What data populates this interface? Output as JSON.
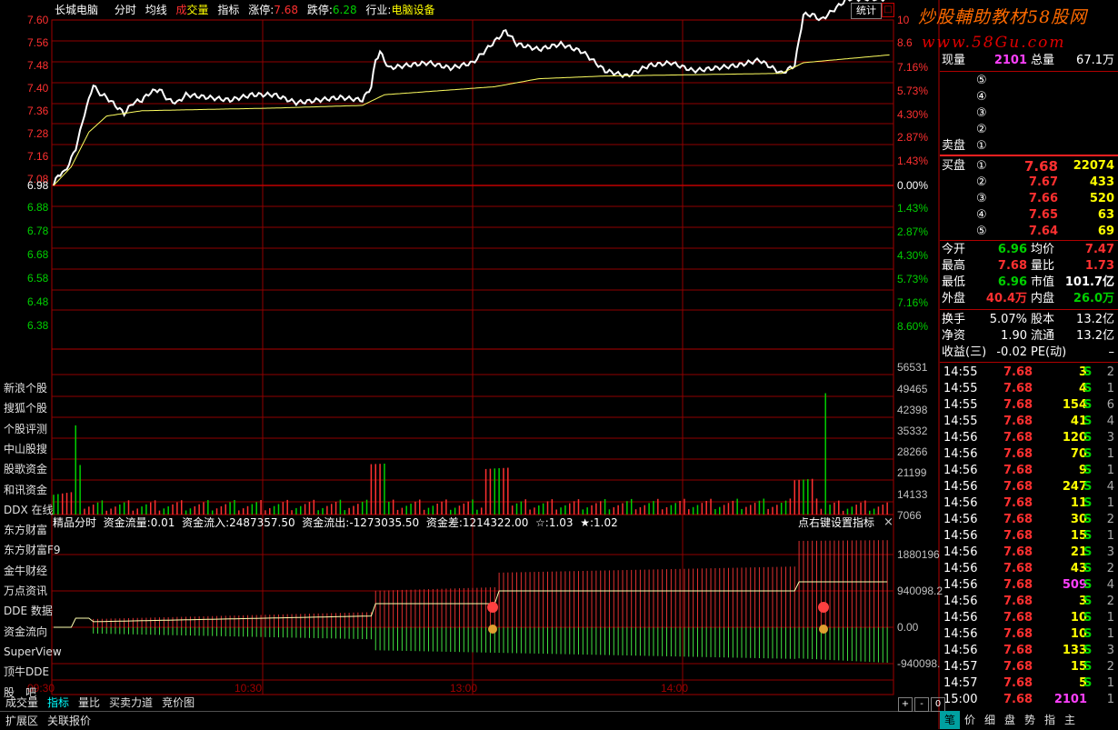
{
  "header": {
    "stock_name": "长城电脑",
    "tab_fenshi": "分时",
    "tab_junxian": "均线",
    "tab_cheng": "成",
    "tab_jiaoliang": "交量",
    "tab_zhibiao": "指标",
    "limit_up_label": "涨停:",
    "limit_up_value": "7.68",
    "limit_down_label": "跌停:",
    "limit_down_value": "6.28",
    "industry_label": "行业:",
    "industry_value": "电脑设备",
    "stat_button": "统计",
    "close_icon": "□"
  },
  "watermark": {
    "line1": "炒股輔助教材58股网",
    "line2": "www.58Gu.com"
  },
  "price_axis_left": [
    "7.60",
    "7.56",
    "7.48",
    "7.40",
    "7.36",
    "7.28",
    "7.16",
    "7.08",
    "6.98",
    "6.88",
    "6.78",
    "6.68",
    "6.58",
    "6.48",
    "6.38"
  ],
  "price_axis_right": [
    "10",
    "8.6",
    "7.16%",
    "5.73%",
    "4.30%",
    "2.87%",
    "1.43%",
    "0.00%",
    "1.43%",
    "2.87%",
    "4.30%",
    "5.73%",
    "7.16%",
    "8.60%"
  ],
  "volume_axis_right": [
    "56531",
    "49465",
    "42398",
    "35332",
    "28266",
    "21199",
    "14133",
    "7066"
  ],
  "indicator_axis_right": [
    "1880196",
    "940098.2",
    "0.00",
    "-940098."
  ],
  "time_axis": [
    "09:30",
    "10:30",
    "13:00",
    "14:00"
  ],
  "left_panel": [
    "新浪个股",
    "搜狐个股",
    "个股评测",
    "中山股搜",
    "股歌资金",
    "和讯资金",
    "DDX 在线",
    "东方财富",
    "东方财富F9",
    "金牛财经",
    "万点资讯",
    "DDE 数据",
    "资金流向",
    "SuperView",
    "顶牛DDE",
    "股　吧"
  ],
  "indicator_header": {
    "name": "精品分时",
    "flow_label": "资金流量:0.01",
    "inflow": "资金流入:2487357.50",
    "outflow": "资金流出:-1273035.50",
    "diff": "资金差:1214322.00",
    "star1": "☆:1.03",
    "star2": "★:1.02",
    "setting": "点右键设置指标",
    "close": "×"
  },
  "quote": {
    "xianliang_label": "现量",
    "xianliang_value": "2101",
    "zongliang_label": "总量",
    "zongliang_value": "67.1万",
    "sell_label": "卖盘",
    "sell_levels": [
      "⑤",
      "④",
      "③",
      "②",
      "①"
    ],
    "buy_label": "买盘",
    "buy": [
      {
        "lv": "①",
        "price": "7.68",
        "vol": "22074"
      },
      {
        "lv": "②",
        "price": "7.67",
        "vol": "433"
      },
      {
        "lv": "③",
        "price": "7.66",
        "vol": "520"
      },
      {
        "lv": "④",
        "price": "7.65",
        "vol": "63"
      },
      {
        "lv": "⑤",
        "price": "7.64",
        "vol": "69"
      }
    ],
    "stats": [
      {
        "l1": "今开",
        "v1": "6.96",
        "c1": "green",
        "l2": "均价",
        "v2": "7.47",
        "c2": "red"
      },
      {
        "l1": "最高",
        "v1": "7.68",
        "c1": "red",
        "l2": "量比",
        "v2": "1.73",
        "c2": "red"
      },
      {
        "l1": "最低",
        "v1": "6.96",
        "c1": "green",
        "l2": "市值",
        "v2": "101.7亿",
        "c2": "white"
      },
      {
        "l1": "外盘",
        "v1": "40.4万",
        "c1": "red",
        "l2": "内盘",
        "v2": "26.0万",
        "c2": "green"
      }
    ],
    "stats2": [
      {
        "l1": "换手",
        "v1": "5.07%",
        "l2": "股本",
        "v2": "13.2亿"
      },
      {
        "l1": "净资",
        "v1": "1.90",
        "l2": "流通",
        "v2": "13.2亿"
      },
      {
        "l1": "收益(三)",
        "v1": "-0.02",
        "l2": "PE(动)",
        "v2": "–"
      }
    ]
  },
  "ticks": [
    {
      "t": "14:55",
      "p": "7.68",
      "v": "3",
      "c": "yellow",
      "s": "S",
      "n": "2"
    },
    {
      "t": "14:55",
      "p": "7.68",
      "v": "4",
      "c": "yellow",
      "s": "S",
      "n": "1"
    },
    {
      "t": "14:55",
      "p": "7.68",
      "v": "154",
      "c": "yellow",
      "s": "S",
      "n": "6"
    },
    {
      "t": "14:55",
      "p": "7.68",
      "v": "41",
      "c": "yellow",
      "s": "S",
      "n": "4"
    },
    {
      "t": "14:56",
      "p": "7.68",
      "v": "120",
      "c": "yellow",
      "s": "S",
      "n": "3"
    },
    {
      "t": "14:56",
      "p": "7.68",
      "v": "70",
      "c": "yellow",
      "s": "S",
      "n": "1"
    },
    {
      "t": "14:56",
      "p": "7.68",
      "v": "9",
      "c": "yellow",
      "s": "S",
      "n": "1"
    },
    {
      "t": "14:56",
      "p": "7.68",
      "v": "247",
      "c": "yellow",
      "s": "S",
      "n": "4"
    },
    {
      "t": "14:56",
      "p": "7.68",
      "v": "11",
      "c": "yellow",
      "s": "S",
      "n": "1"
    },
    {
      "t": "14:56",
      "p": "7.68",
      "v": "30",
      "c": "yellow",
      "s": "S",
      "n": "2"
    },
    {
      "t": "14:56",
      "p": "7.68",
      "v": "15",
      "c": "yellow",
      "s": "S",
      "n": "1"
    },
    {
      "t": "14:56",
      "p": "7.68",
      "v": "21",
      "c": "yellow",
      "s": "S",
      "n": "3"
    },
    {
      "t": "14:56",
      "p": "7.68",
      "v": "43",
      "c": "yellow",
      "s": "S",
      "n": "2"
    },
    {
      "t": "14:56",
      "p": "7.68",
      "v": "509",
      "c": "purple",
      "s": "S",
      "n": "4"
    },
    {
      "t": "14:56",
      "p": "7.68",
      "v": "3",
      "c": "yellow",
      "s": "S",
      "n": "2"
    },
    {
      "t": "14:56",
      "p": "7.68",
      "v": "10",
      "c": "yellow",
      "s": "S",
      "n": "1"
    },
    {
      "t": "14:56",
      "p": "7.68",
      "v": "10",
      "c": "yellow",
      "s": "S",
      "n": "1"
    },
    {
      "t": "14:56",
      "p": "7.68",
      "v": "133",
      "c": "yellow",
      "s": "S",
      "n": "3"
    },
    {
      "t": "14:57",
      "p": "7.68",
      "v": "15",
      "c": "yellow",
      "s": "S",
      "n": "2"
    },
    {
      "t": "14:57",
      "p": "7.68",
      "v": "5",
      "c": "yellow",
      "s": "S",
      "n": "1"
    },
    {
      "t": "15:00",
      "p": "7.68",
      "v": "2101",
      "c": "purple",
      "s": "",
      "n": "1"
    }
  ],
  "bottom_tabs": [
    "成交量",
    "指标",
    "量比",
    "买卖力道",
    "竞价图"
  ],
  "bottom_tabs2": [
    "扩展区",
    "关联报价"
  ],
  "zoom_buttons": [
    "+",
    "-",
    "0"
  ],
  "right_tabs": [
    "笔",
    "价",
    "细",
    "盘",
    "势",
    "指",
    "主"
  ]
}
